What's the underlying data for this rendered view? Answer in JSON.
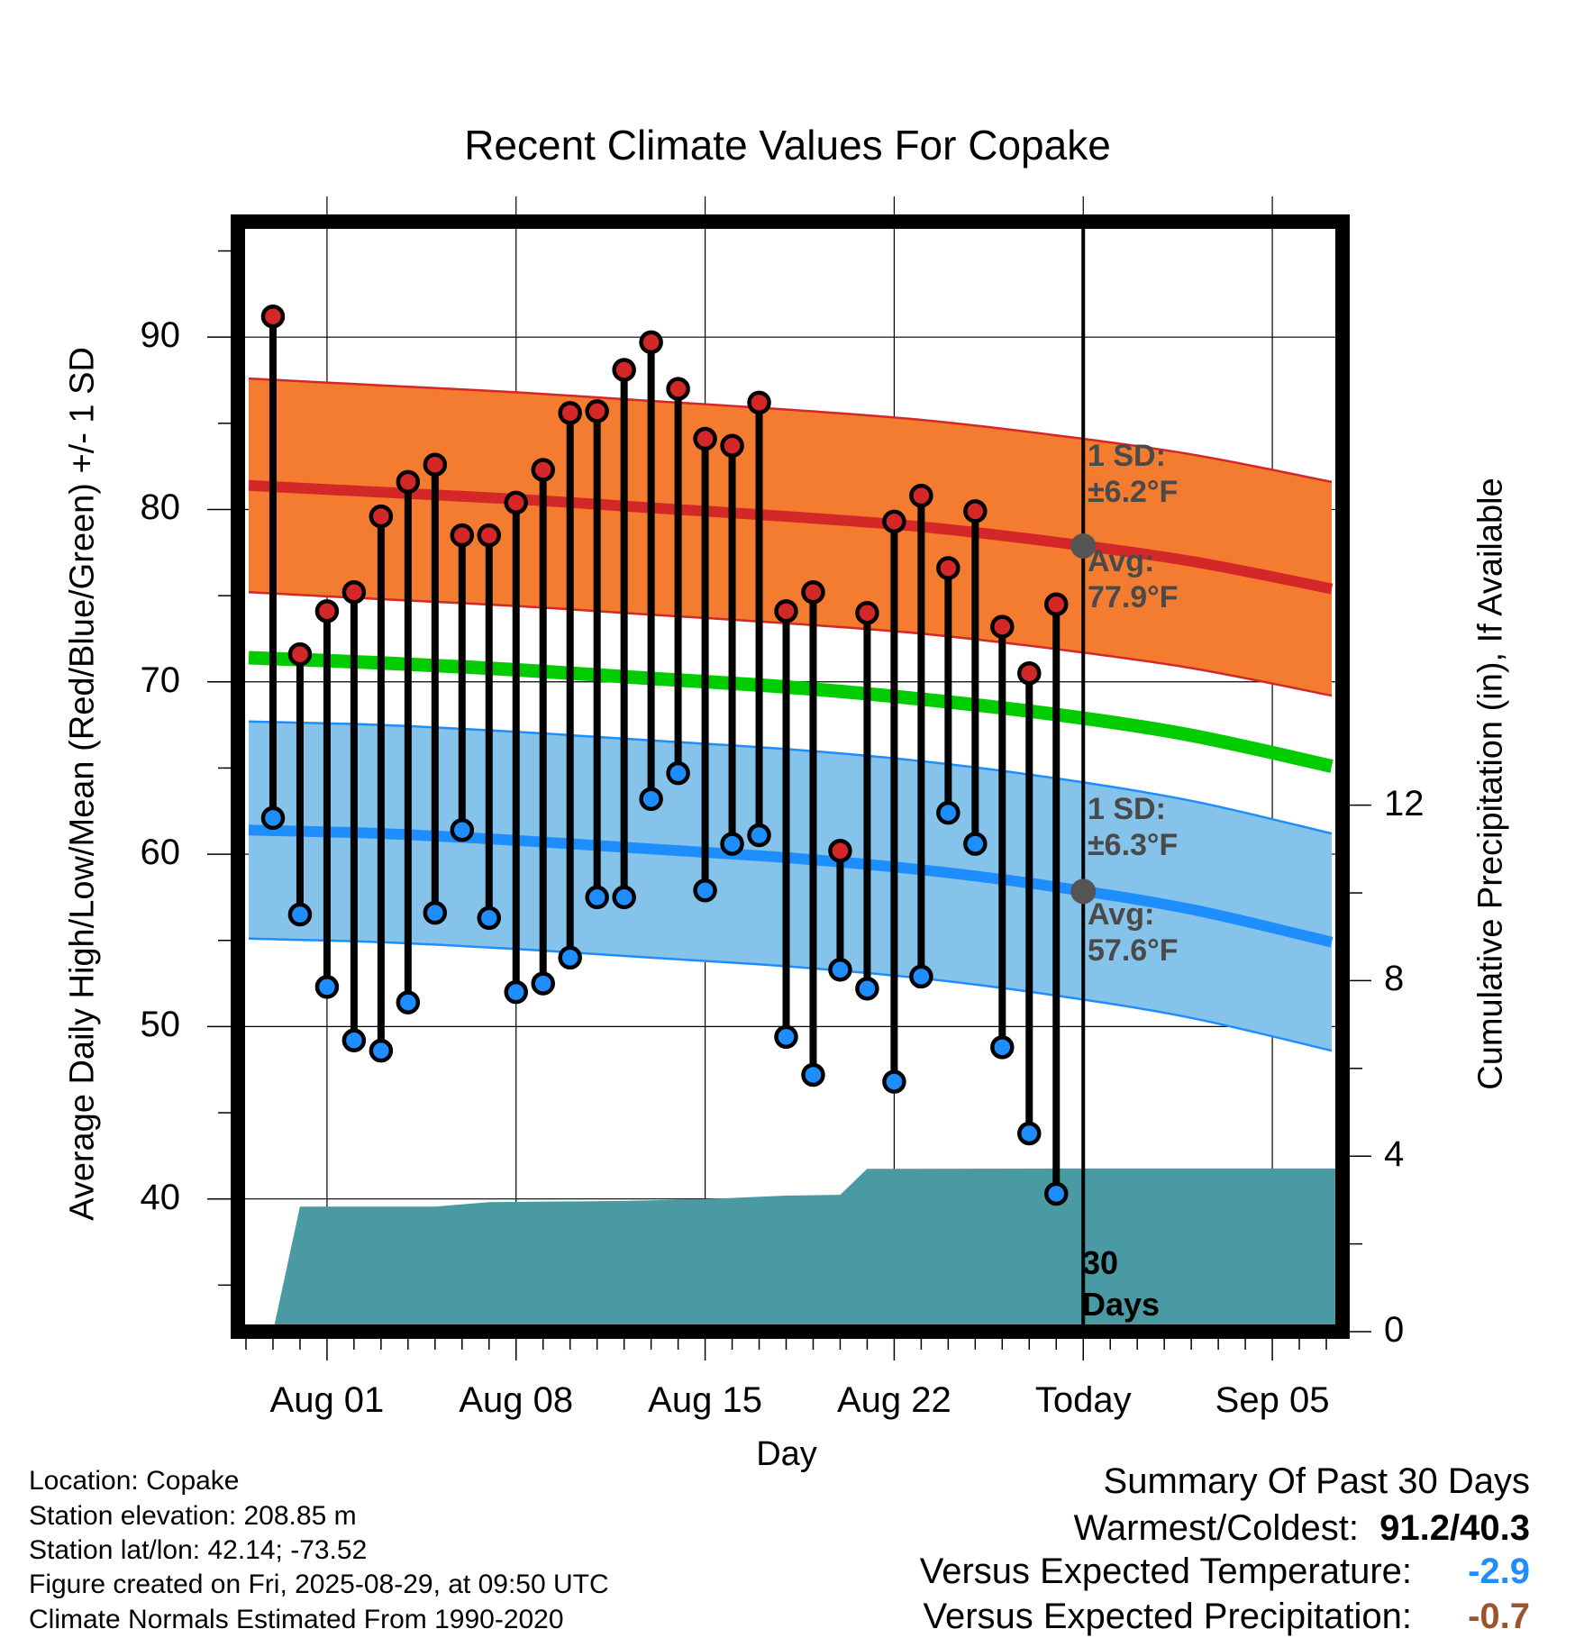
{
  "chart_data": {
    "type": "line",
    "title": "Recent Climate Values For Copake",
    "xlabel": "Day",
    "ylabel": "Average Daily High/Low/Mean (Red/Blue/Green) +/- 1 SD",
    "y2label": "Cumulative Precipitation (in), If Available",
    "ylim": [
      32.3,
      96.7
    ],
    "y2lim": [
      0,
      25.3
    ],
    "yticks": [
      40,
      50,
      60,
      70,
      80,
      90
    ],
    "y2ticks": [
      0,
      4,
      8,
      12
    ],
    "x_ticks": [
      {
        "day": 1,
        "label": "Aug 01"
      },
      {
        "day": 8,
        "label": "Aug 08"
      },
      {
        "day": 15,
        "label": "Aug 15"
      },
      {
        "day": 22,
        "label": "Aug 22"
      },
      {
        "day": 29,
        "label": "Today"
      },
      {
        "day": 36,
        "label": "Sep 05"
      }
    ],
    "xlim": [
      -2.3,
      38.6
    ],
    "grid": true,
    "days": [
      -1,
      0,
      1,
      2,
      3,
      4,
      5,
      6,
      7,
      8,
      9,
      10,
      11,
      12,
      13,
      14,
      15,
      16,
      17,
      18,
      19,
      20,
      21,
      22,
      23,
      24,
      25,
      26,
      27,
      28
    ],
    "daily_high": [
      91.2,
      71.6,
      74.1,
      75.2,
      79.6,
      81.6,
      82.6,
      78.5,
      78.5,
      80.4,
      82.3,
      85.6,
      85.7,
      88.1,
      89.7,
      87.0,
      84.1,
      83.7,
      86.2,
      74.1,
      75.2,
      60.2,
      74.0,
      79.3,
      80.8,
      76.6,
      79.9,
      73.2,
      70.5,
      74.5
    ],
    "daily_low": [
      62.1,
      56.5,
      52.3,
      49.2,
      48.6,
      51.4,
      56.6,
      61.4,
      56.3,
      52.0,
      52.5,
      54.0,
      57.5,
      57.5,
      63.2,
      64.7,
      57.9,
      60.6,
      61.1,
      49.4,
      47.2,
      53.3,
      52.2,
      46.8,
      52.9,
      62.4,
      60.6,
      48.8,
      43.8,
      40.3
    ],
    "normal_days": [
      -1.9,
      3,
      8,
      13,
      18,
      23,
      28,
      33,
      38.2
    ],
    "normal_high": [
      81.4,
      81.0,
      80.6,
      80.1,
      79.6,
      79.0,
      78.1,
      77.0,
      75.4
    ],
    "normal_high_sd": 6.2,
    "normal_low": [
      61.4,
      61.2,
      60.8,
      60.3,
      59.8,
      59.1,
      58.1,
      56.8,
      54.9
    ],
    "normal_low_sd": 6.3,
    "normal_mean": [
      71.4,
      71.1,
      70.7,
      70.2,
      69.7,
      69.0,
      68.1,
      66.9,
      65.1
    ],
    "precip_days": [
      -1,
      0,
      5,
      7,
      12,
      15,
      18,
      20,
      21,
      28,
      38.6
    ],
    "precip_cumulative": [
      0,
      2.85,
      2.85,
      2.95,
      2.98,
      3.02,
      3.1,
      3.12,
      3.71,
      3.72,
      3.72
    ],
    "today_day": 29,
    "annotations": {
      "high_sd": "±6.2°F",
      "high_avg": "77.9°F",
      "low_sd": "±6.3°F",
      "low_avg": "57.6°F",
      "sd_label": "1 SD:",
      "avg_label": "Avg:",
      "period_line1": "30",
      "period_line2": "Days"
    },
    "colors": {
      "high_band": "#f47c30",
      "high_line": "#d42727",
      "low_band": "#85c3ea",
      "low_line": "#1e8eff",
      "mean_line": "#00cc00",
      "precip": "#4a9aa3",
      "high_dot": "#d42727",
      "low_dot": "#1e8eff",
      "avg_dot": "#555555"
    }
  },
  "footer": {
    "location": "Location: Copake",
    "elevation": "Station elevation: 208.85 m",
    "latlon": "Station lat/lon: 42.14; -73.52",
    "created": "Figure created on Fri, 2025-08-29, at 09:50 UTC",
    "normals": "Climate Normals Estimated From 1990-2020"
  },
  "summary": {
    "heading": "Summary Of Past 30 Days",
    "warmest_label": "Warmest/Coldest:",
    "warmest_value": "91.2/40.3",
    "temp_label": "Versus Expected Temperature:",
    "temp_value": "-2.9",
    "temp_color": "#1e8eff",
    "precip_label": "Versus Expected Precipitation:",
    "precip_value": "-0.7",
    "precip_color": "#a0522d"
  }
}
